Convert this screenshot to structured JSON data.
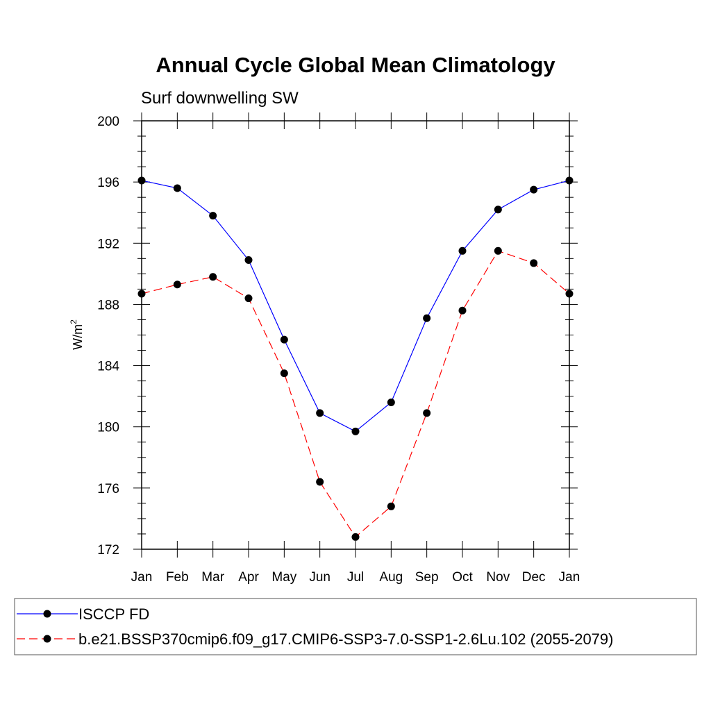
{
  "chart_data": {
    "type": "line",
    "title": "Annual Cycle Global Mean Climatology",
    "subtitle": "Surf downwelling SW",
    "ylabel": "W/m",
    "ylabel_superscript": "2",
    "xlabel": "",
    "categories": [
      "Jan",
      "Feb",
      "Mar",
      "Apr",
      "May",
      "Jun",
      "Jul",
      "Aug",
      "Sep",
      "Oct",
      "Nov",
      "Dec",
      "Jan"
    ],
    "ylim": [
      172,
      200
    ],
    "yticks": [
      172,
      176,
      180,
      184,
      188,
      192,
      196,
      200
    ],
    "grid": false,
    "legend_placement": "bottom",
    "series": [
      {
        "name": "ISCCP FD",
        "color": "#0000ff",
        "line_style": "solid",
        "marker": "filled-circle",
        "values": [
          196.1,
          195.6,
          193.8,
          190.9,
          185.7,
          180.9,
          179.7,
          181.6,
          187.1,
          191.5,
          194.2,
          195.5,
          196.1
        ]
      },
      {
        "name": "b.e21.BSSP370cmip6.f09_g17.CMIP6-SSP3-7.0-SSP1-2.6Lu.102 (2055-2079)",
        "color": "#ff0000",
        "line_style": "dashed",
        "marker": "filled-circle",
        "values": [
          188.7,
          189.3,
          189.8,
          188.4,
          183.5,
          176.4,
          172.8,
          174.8,
          180.9,
          187.6,
          191.5,
          190.7,
          188.7
        ]
      }
    ]
  }
}
